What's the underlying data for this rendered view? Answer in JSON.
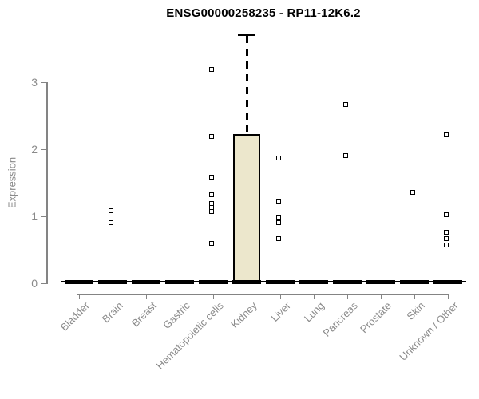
{
  "window": {
    "background": "#ffffff"
  },
  "chart_data": {
    "type": "boxplot",
    "title": "ENSG00000258235 - RP11-12K6.2",
    "ylabel": "Expression",
    "xlabel": "",
    "ylim": [
      0,
      3.75
    ],
    "yticks": [
      0,
      1,
      2,
      3
    ],
    "grid": false,
    "legend": null,
    "categories": [
      "Bladder",
      "Brain",
      "Breast",
      "Gastric",
      "Hematopoietic cells",
      "Kidney",
      "Liver",
      "Lung",
      "Pancreas",
      "Prostate",
      "Skin",
      "Unknown / Other"
    ],
    "boxes": [
      {
        "category": "Bladder",
        "q1": 0,
        "median": 0.02,
        "q3": 0,
        "whisker_low": 0,
        "whisker_high": 0,
        "outliers": []
      },
      {
        "category": "Brain",
        "q1": 0,
        "median": 0.02,
        "q3": 0,
        "whisker_low": 0,
        "whisker_high": 0,
        "outliers": [
          1.08,
          0.9
        ]
      },
      {
        "category": "Breast",
        "q1": 0,
        "median": 0.02,
        "q3": 0,
        "whisker_low": 0,
        "whisker_high": 0,
        "outliers": []
      },
      {
        "category": "Gastric",
        "q1": 0,
        "median": 0.02,
        "q3": 0,
        "whisker_low": 0,
        "whisker_high": 0,
        "outliers": []
      },
      {
        "category": "Hematopoietic cells",
        "q1": 0,
        "median": 0.02,
        "q3": 0,
        "whisker_low": 0,
        "whisker_high": 0,
        "outliers": [
          3.19,
          2.19,
          1.58,
          1.32,
          1.19,
          1.13,
          1.07,
          0.6
        ]
      },
      {
        "category": "Kidney",
        "q1": 0,
        "median": 0.02,
        "q3": 2.22,
        "whisker_low": 0,
        "whisker_high": 3.72,
        "outliers": []
      },
      {
        "category": "Liver",
        "q1": 0,
        "median": 0.02,
        "q3": 0,
        "whisker_low": 0,
        "whisker_high": 0,
        "outliers": [
          1.87,
          1.22,
          0.98,
          0.91,
          0.67
        ]
      },
      {
        "category": "Lung",
        "q1": 0,
        "median": 0.02,
        "q3": 0,
        "whisker_low": 0,
        "whisker_high": 0,
        "outliers": []
      },
      {
        "category": "Pancreas",
        "q1": 0,
        "median": 0.02,
        "q3": 0,
        "whisker_low": 0,
        "whisker_high": 0,
        "outliers": [
          2.67,
          1.9
        ]
      },
      {
        "category": "Prostate",
        "q1": 0,
        "median": 0.02,
        "q3": 0,
        "whisker_low": 0,
        "whisker_high": 0,
        "outliers": []
      },
      {
        "category": "Skin",
        "q1": 0,
        "median": 0.02,
        "q3": 0,
        "whisker_low": 0,
        "whisker_high": 0,
        "outliers": [
          1.36
        ]
      },
      {
        "category": "Unknown / Other",
        "q1": 0,
        "median": 0.02,
        "q3": 0,
        "whisker_low": 0,
        "whisker_high": 0,
        "outliers": [
          2.22,
          1.02,
          0.76,
          0.67,
          0.57
        ]
      }
    ],
    "colors": {
      "box_fill": "#ECE7CC",
      "box_border": "#000000",
      "whisker": "#000000",
      "outlier_border": "#000000",
      "outlier_fill": "#ffffff",
      "axis": "#848484",
      "axis_text": "#8a8a8a",
      "title": "#000000"
    }
  }
}
